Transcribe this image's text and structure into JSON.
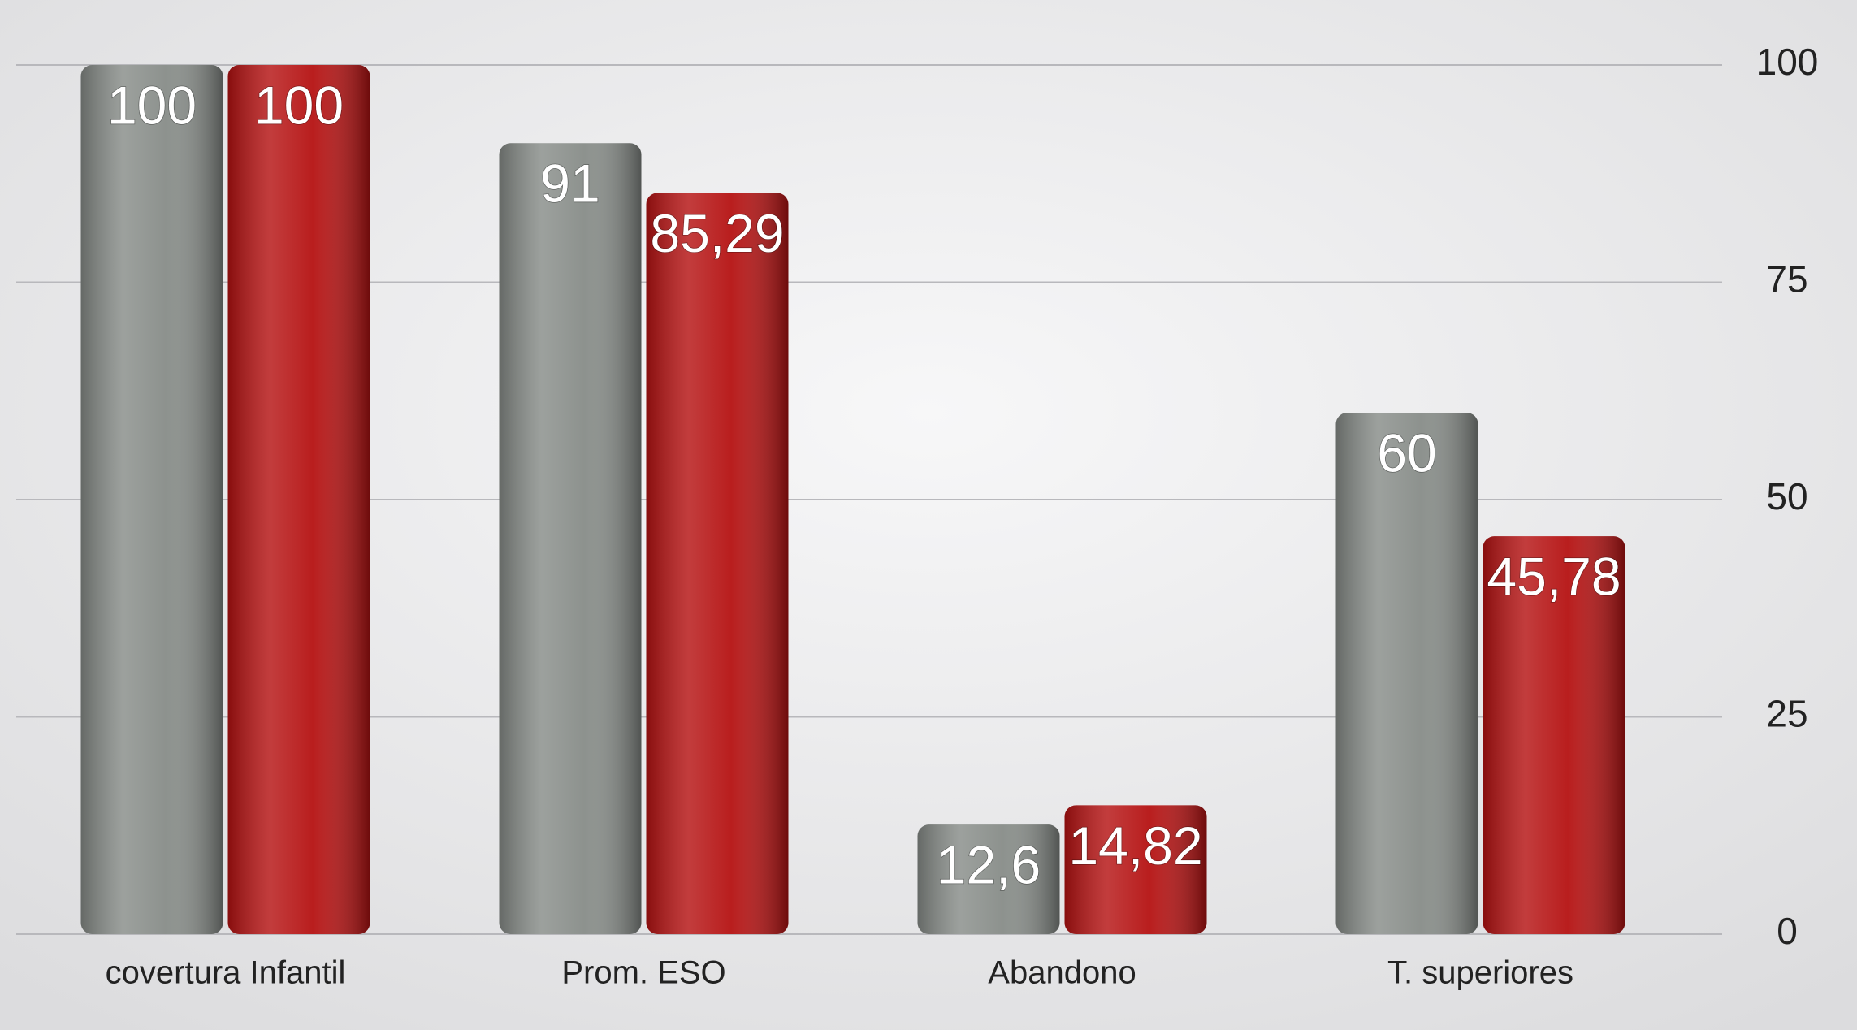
{
  "chart_data": {
    "type": "bar",
    "categories": [
      "covertura Infantil",
      "Prom. ESO",
      "Abandono",
      "T. superiores"
    ],
    "series": [
      {
        "color": "#878c88",
        "values": [
          100,
          91,
          12.6,
          60
        ],
        "value_labels": [
          "100",
          "91",
          "12,6",
          "60"
        ]
      },
      {
        "color": "#b51212",
        "values": [
          100,
          85.29,
          14.82,
          45.78
        ],
        "value_labels": [
          "100",
          "85,29",
          "14,82",
          "45,78"
        ]
      }
    ],
    "ylim": [
      0,
      100
    ],
    "yticks": [
      0,
      25,
      50,
      75,
      100
    ],
    "grid": true
  }
}
